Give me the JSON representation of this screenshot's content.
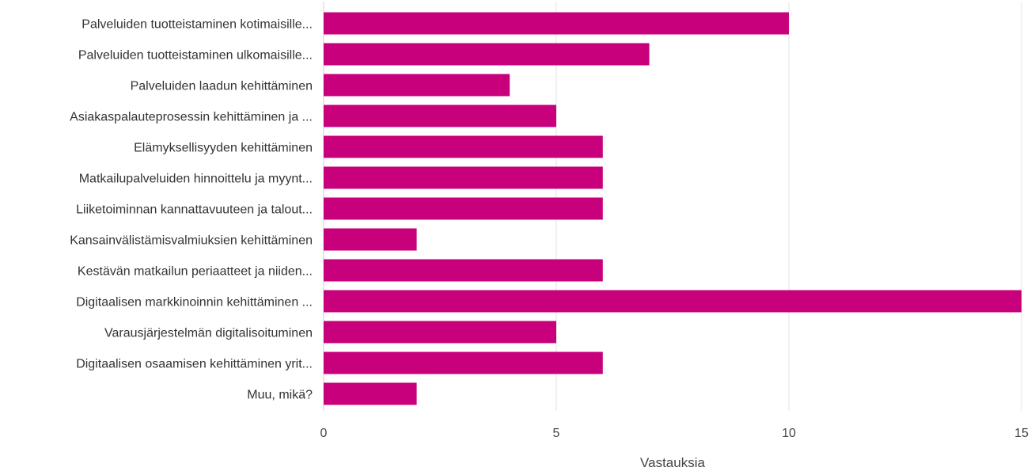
{
  "chart_data": {
    "type": "bar",
    "orientation": "horizontal",
    "categories": [
      "Palveluiden tuotteistaminen kotimaisille...",
      "Palveluiden tuotteistaminen ulkomaisille...",
      "Palveluiden laadun kehittäminen",
      "Asiakaspalauteprosessin kehittäminen ja ...",
      "Elämyksellisyyden kehittäminen",
      "Matkailupalveluiden hinnoittelu ja myynt...",
      "Liiketoiminnan kannattavuuteen ja talout...",
      "Kansainvälistämisvalmiuksien kehittäminen",
      "Kestävän matkailun periaatteet ja niiden...",
      "Digitaalisen markkinoinnin kehittäminen ...",
      "Varausjärjestelmän digitalisoituminen",
      "Digitaalisen osaamisen kehittäminen yrit...",
      "Muu, mikä?"
    ],
    "values": [
      10,
      7,
      4,
      5,
      6,
      6,
      6,
      2,
      6,
      15,
      5,
      6,
      2
    ],
    "xlabel": "Vastauksia",
    "xlim": [
      0,
      15
    ],
    "xticks": [
      0,
      5,
      10,
      15
    ],
    "grid": true,
    "bar_color": "#c8007c",
    "grid_color": "#e3e3e3"
  }
}
